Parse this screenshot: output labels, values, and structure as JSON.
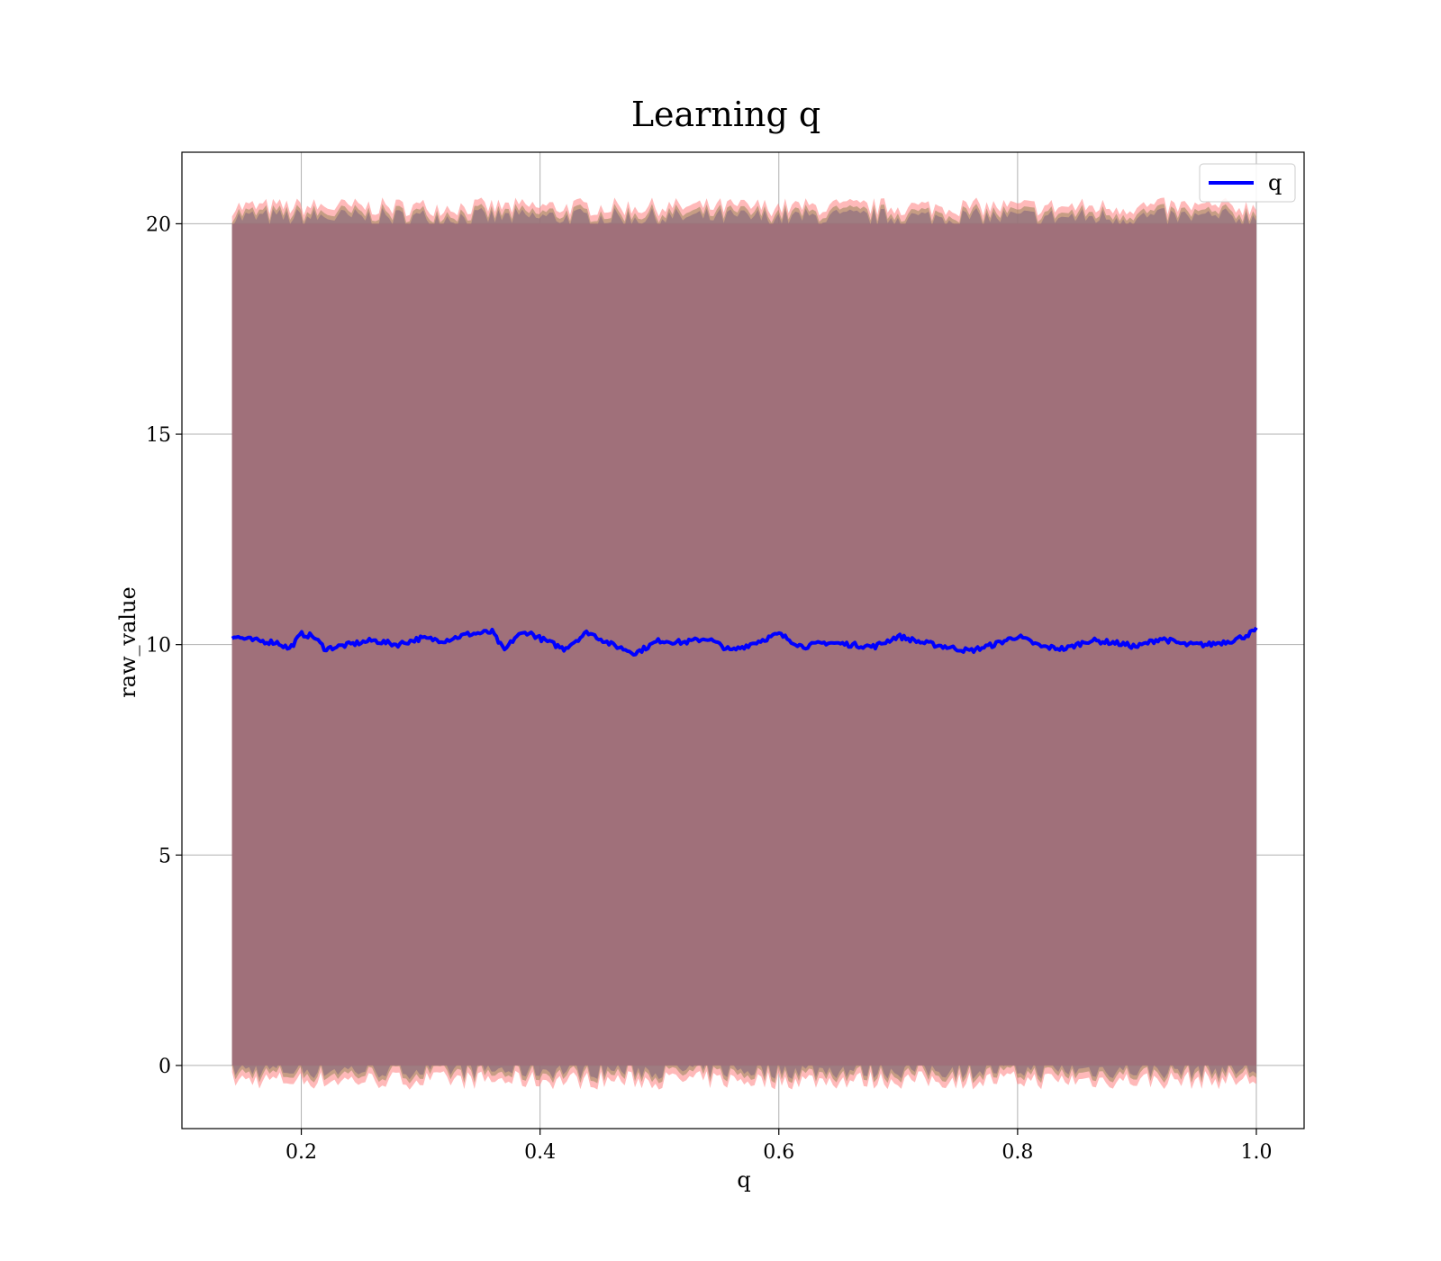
{
  "chart_data": {
    "type": "line",
    "title": "Learning q",
    "xlabel": "q",
    "ylabel": "raw_value",
    "xlim": [
      0.1,
      1.04
    ],
    "ylim": [
      -1.5,
      21.7
    ],
    "xticks": [
      0.2,
      0.4,
      0.6,
      0.8,
      1.0
    ],
    "xtick_labels": [
      "0.2",
      "0.4",
      "0.6",
      "0.8",
      "1.0"
    ],
    "yticks": [
      0,
      5,
      10,
      15,
      20
    ],
    "ytick_labels": [
      "0",
      "5",
      "10",
      "15",
      "20"
    ],
    "grid": true,
    "legend": {
      "placement": "upper right",
      "entries": [
        {
          "label": "q",
          "color": "#0000ff"
        }
      ]
    },
    "series": [
      {
        "name": "q",
        "color": "#0000ff",
        "x": [
          0.142,
          0.16,
          0.18,
          0.19,
          0.2,
          0.21,
          0.22,
          0.24,
          0.26,
          0.28,
          0.3,
          0.32,
          0.34,
          0.36,
          0.37,
          0.38,
          0.39,
          0.4,
          0.42,
          0.44,
          0.46,
          0.48,
          0.5,
          0.52,
          0.54,
          0.56,
          0.58,
          0.6,
          0.62,
          0.64,
          0.66,
          0.68,
          0.7,
          0.72,
          0.74,
          0.76,
          0.78,
          0.8,
          0.82,
          0.84,
          0.86,
          0.88,
          0.9,
          0.92,
          0.94,
          0.96,
          0.98,
          0.99,
          1.0
        ],
        "y": [
          10.2,
          10.1,
          10.05,
          9.9,
          10.25,
          10.2,
          9.9,
          10.0,
          10.1,
          10.0,
          10.15,
          10.1,
          10.25,
          10.3,
          9.85,
          10.2,
          10.3,
          10.15,
          9.9,
          10.3,
          10.0,
          9.8,
          10.1,
          10.05,
          10.15,
          9.85,
          10.05,
          10.25,
          9.95,
          10.05,
          10.0,
          9.95,
          10.2,
          10.05,
          9.95,
          9.85,
          10.0,
          10.2,
          9.95,
          9.9,
          10.1,
          10.05,
          9.95,
          10.15,
          10.0,
          10.0,
          10.1,
          10.2,
          10.35
        ]
      }
    ],
    "band": {
      "color": "#a0707a",
      "lower": 0.0,
      "upper": 20.0,
      "edge_colors": [
        "#ff8080",
        "#a08a60",
        "#806080"
      ]
    }
  }
}
